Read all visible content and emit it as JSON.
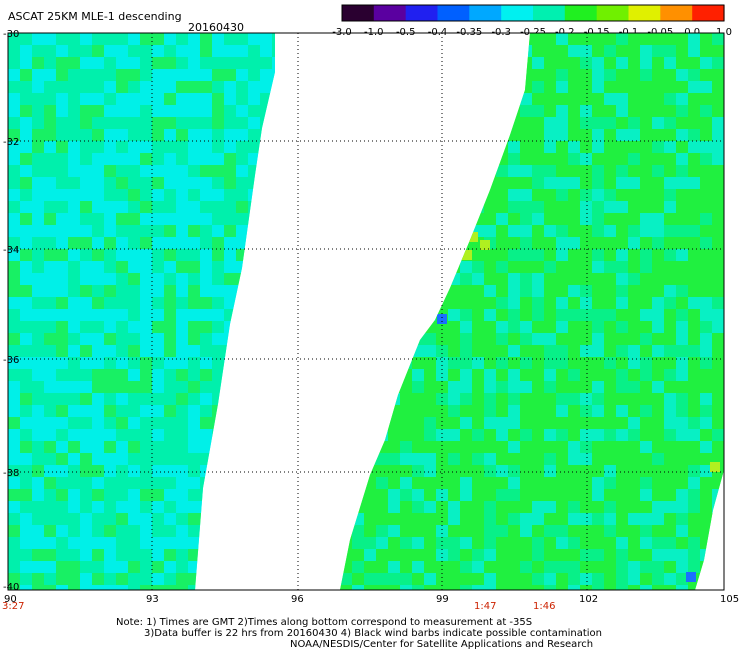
{
  "header": {
    "title": "ASCAT 25KM MLE-1 descending",
    "date": "20160430"
  },
  "colorbar": {
    "labels": [
      "-3.0",
      "-1.0",
      "-0.5",
      "-0.4",
      "-0.35",
      "-0.3",
      "-0.25",
      "-0.2",
      "-0.15",
      "-0.1",
      "-0.05",
      "0.0",
      "1.0"
    ],
    "colors": [
      "#2a0030",
      "#5a00a0",
      "#2020f0",
      "#0060ff",
      "#00a8ff",
      "#00f0f0",
      "#00f0b0",
      "#20f020",
      "#70f000",
      "#e0f000",
      "#ff9000",
      "#ff2000"
    ]
  },
  "map": {
    "lat_labels": [
      "-30",
      "-32",
      "-34",
      "-36",
      "-38",
      "-40"
    ],
    "lon_labels": [
      "90",
      "93",
      "96",
      "99",
      "102",
      "105"
    ],
    "lat_range": [
      -40,
      -30
    ],
    "lon_range": [
      90,
      105
    ],
    "grid_lats": [
      -32,
      -34,
      -36,
      -38
    ],
    "grid_lons": [
      93,
      99,
      102
    ],
    "swath_colors": {
      "cyan": "#00f0f0",
      "aqua_green": "#00f0a0",
      "green": "#20f040",
      "yellow_green": "#b0f020",
      "blue": "#1a70ff"
    }
  },
  "times": [
    "3:27",
    "1:47",
    "1:46"
  ],
  "notes": {
    "line1": "Note: 1) Times are GMT 2)Times along bottom correspond to measurement at -35S",
    "line2": "3)Data buffer is 22 hrs from 20160430 4) Black wind barbs indicate possible contamination",
    "line3": "NOAA/NESDIS/Center for Satellite Applications and Research"
  }
}
